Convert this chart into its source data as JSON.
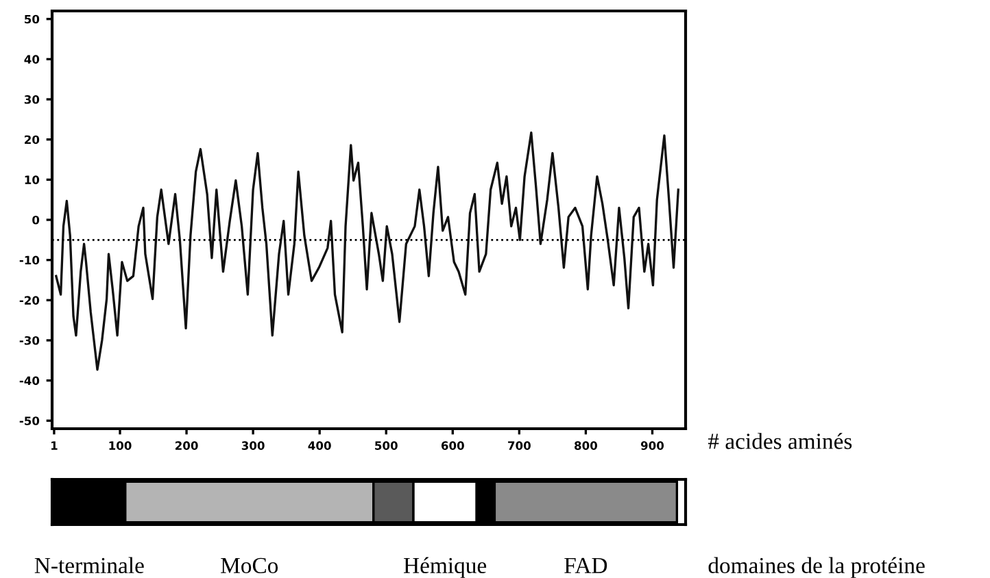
{
  "chart_data": [
    {
      "type": "line",
      "xlabel": "# acides aminés",
      "xlim": [
        -2,
        950
      ],
      "ylim": [
        -52,
        52
      ],
      "xticks": [
        1,
        100,
        200,
        300,
        400,
        500,
        600,
        700,
        800,
        900
      ],
      "yticks": [
        -50,
        -40,
        -30,
        -20,
        -10,
        0,
        10,
        20,
        30,
        40,
        50
      ],
      "grid": false,
      "marker": "none",
      "line_style": "solid",
      "ref_lines": [
        {
          "axis": "y",
          "value": -5,
          "line_style": "dotted",
          "color": "#000000"
        }
      ],
      "series": [
        {
          "color": "#111111",
          "x": [
            4,
            11,
            15,
            20,
            25,
            30,
            34,
            41,
            46,
            49,
            56,
            66,
            73,
            80,
            83,
            89,
            96,
            103,
            111,
            120,
            128,
            135,
            138,
            149,
            156,
            162,
            173,
            183,
            190,
            199,
            206,
            214,
            221,
            231,
            238,
            245,
            255,
            265,
            274,
            283,
            292,
            300,
            307,
            314,
            320,
            329,
            339,
            346,
            353,
            362,
            368,
            377,
            388,
            399,
            412,
            417,
            423,
            434,
            439,
            447,
            451,
            458,
            465,
            471,
            478,
            489,
            495,
            501,
            509,
            520,
            530,
            543,
            550,
            557,
            564,
            571,
            578,
            585,
            593,
            602,
            609,
            619,
            626,
            633,
            640,
            650,
            657,
            667,
            674,
            681,
            688,
            695,
            701,
            708,
            718,
            725,
            732,
            742,
            750,
            759,
            767,
            774,
            784,
            795,
            803,
            808,
            817,
            825,
            833,
            842,
            850,
            858,
            864,
            872,
            880,
            888,
            894,
            901,
            907,
            918,
            925,
            932,
            939
          ],
          "values": [
            -14,
            -18.6,
            -1.6,
            4.7,
            -3.9,
            -24,
            -28.8,
            -12.9,
            -6,
            -10.5,
            -23,
            -37.3,
            -30,
            -19.7,
            -8.5,
            -17.3,
            -28.8,
            -10.5,
            -15.2,
            -14,
            -1.6,
            3,
            -8.5,
            -19.7,
            0.7,
            7.5,
            -6,
            6.4,
            -5,
            -27,
            -3.9,
            12,
            17.6,
            6.4,
            -9.5,
            7.5,
            -12.9,
            -0.3,
            9.8,
            -1.6,
            -18.6,
            7.5,
            16.6,
            3,
            -6,
            -28.8,
            -8.5,
            -0.3,
            -18.6,
            -6,
            12,
            -3.9,
            -15.2,
            -11.9,
            -7,
            -0.3,
            -18.6,
            -28,
            -1.6,
            18.6,
            9.8,
            14.2,
            -1.6,
            -17.3,
            1.7,
            -8.5,
            -15.2,
            -1.6,
            -8.5,
            -25.4,
            -6,
            -1.6,
            7.5,
            -1.6,
            -14,
            1.7,
            13.2,
            -2.7,
            0.7,
            -10.5,
            -12.9,
            -18.6,
            1.7,
            6.4,
            -12.9,
            -8.5,
            7.5,
            14.2,
            4,
            10.8,
            -1.6,
            3,
            -5,
            10.8,
            21.7,
            8.5,
            -6,
            5,
            16.6,
            3,
            -11.9,
            0.7,
            3,
            -1.6,
            -17.3,
            -3.9,
            10.8,
            4,
            -5,
            -16.3,
            3,
            -9.5,
            -22,
            0.7,
            3,
            -12.9,
            -6,
            -16.3,
            5,
            21,
            5,
            -11.9,
            7.5
          ]
        }
      ]
    },
    {
      "type": "bar",
      "orientation": "horizontal",
      "stacked": true,
      "xlabel": "domaines de la protéine",
      "xlim": [
        -2,
        950
      ],
      "tick_labels": false,
      "categories": [
        null
      ],
      "series": [
        {
          "name": "N-terminale",
          "color": "#000000",
          "values": [
            108
          ]
        },
        {
          "name": "MoCo",
          "color": "#b4b4b4",
          "values": [
            373
          ]
        },
        {
          "color": "#5a5a5a",
          "values": [
            60
          ]
        },
        {
          "name": "Hémique",
          "color": "#ffffff",
          "values": [
            95
          ]
        },
        {
          "color": "#000000",
          "values": [
            27
          ]
        },
        {
          "name": "FAD",
          "color": "#8a8a8a",
          "values": [
            274
          ]
        }
      ]
    }
  ]
}
